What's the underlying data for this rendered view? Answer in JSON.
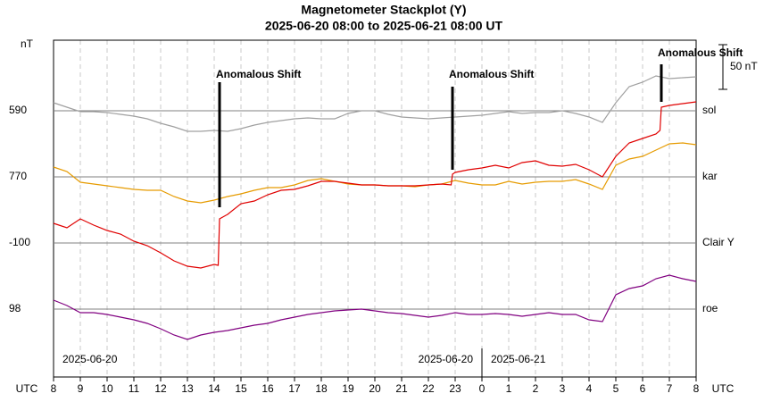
{
  "chart_data": {
    "type": "line",
    "title": "Magnetometer Stackplot (Y)",
    "subtitle": "2025-06-20 08:00 to 2025-06-21 08:00 UT",
    "y_label": "nT",
    "x_label_left": "UTC",
    "x_label_right": "UTC",
    "xlim": [
      0,
      24
    ],
    "xticks": [
      {
        "value": 0,
        "label": "8"
      },
      {
        "value": 1,
        "label": "9"
      },
      {
        "value": 2,
        "label": "10"
      },
      {
        "value": 3,
        "label": "11"
      },
      {
        "value": 4,
        "label": "12"
      },
      {
        "value": 5,
        "label": "13"
      },
      {
        "value": 6,
        "label": "14"
      },
      {
        "value": 7,
        "label": "15"
      },
      {
        "value": 8,
        "label": "16"
      },
      {
        "value": 9,
        "label": "17"
      },
      {
        "value": 10,
        "label": "18"
      },
      {
        "value": 11,
        "label": "19"
      },
      {
        "value": 12,
        "label": "20"
      },
      {
        "value": 13,
        "label": "21"
      },
      {
        "value": 14,
        "label": "22"
      },
      {
        "value": 15,
        "label": "23"
      },
      {
        "value": 16,
        "label": "0"
      },
      {
        "value": 17,
        "label": "1"
      },
      {
        "value": 18,
        "label": "2"
      },
      {
        "value": 19,
        "label": "3"
      },
      {
        "value": 20,
        "label": "4"
      },
      {
        "value": 21,
        "label": "5"
      },
      {
        "value": 22,
        "label": "6"
      },
      {
        "value": 23,
        "label": "7"
      },
      {
        "value": 24,
        "label": "8"
      }
    ],
    "grid": true,
    "date_labels": [
      {
        "x": 0,
        "text": "2025-06-20",
        "align": "start"
      },
      {
        "x": 16,
        "text": "2025-06-20",
        "align": "end"
      },
      {
        "x": 16,
        "text": "2025-06-21",
        "align": "start"
      }
    ],
    "day_divider": 16,
    "scale_bar": {
      "value": 50,
      "label": "50 nT"
    },
    "x": [
      0,
      0.5,
      1,
      1.5,
      2,
      2.5,
      3,
      3.5,
      4,
      4.5,
      5,
      5.5,
      6,
      6.5,
      7,
      7.5,
      8,
      8.5,
      9,
      9.5,
      10,
      10.5,
      11,
      11.5,
      12,
      12.5,
      13,
      13.5,
      14,
      14.5,
      15,
      15.5,
      16,
      16.5,
      17,
      17.5,
      18,
      18.5,
      19,
      19.5,
      20,
      20.5,
      21,
      21.5,
      22,
      22.5,
      23,
      23.5,
      24
    ],
    "series": [
      {
        "name": "sol",
        "baseline": 590,
        "color": "#a0a0a0",
        "values": [
          599,
          594,
          589,
          589,
          588,
          586,
          584,
          581,
          576,
          572,
          567,
          567,
          568,
          567,
          570,
          574,
          577,
          579,
          581,
          582,
          581,
          581,
          587,
          590,
          590,
          586,
          583,
          582,
          581,
          582,
          583,
          584,
          585,
          587,
          589,
          587,
          588,
          588,
          590,
          587,
          583,
          577,
          599,
          617,
          622,
          629,
          626,
          627,
          628
        ]
      },
      {
        "name": "kar",
        "baseline": 770,
        "color": "#e69b00",
        "values": [
          781,
          776,
          764,
          762,
          760,
          758,
          756,
          755,
          755,
          748,
          743,
          741,
          744,
          748,
          751,
          755,
          758,
          758,
          761,
          766,
          768,
          765,
          762,
          761,
          761,
          760,
          760,
          759,
          761,
          762,
          766,
          763,
          761,
          761,
          765,
          762,
          764,
          765,
          765,
          767,
          762,
          756,
          783,
          790,
          793,
          800,
          807,
          808,
          806
        ]
      },
      {
        "name": "Clair Y",
        "baseline": -100,
        "color": "#e00000",
        "x": [
          0,
          0.5,
          1,
          1.5,
          2,
          2.5,
          3,
          3.5,
          4,
          4.5,
          5,
          5.5,
          6,
          6.15,
          6.2,
          6.5,
          7,
          7.5,
          8,
          8.5,
          9,
          9.5,
          10,
          10.5,
          11,
          11.5,
          12,
          12.5,
          13,
          13.5,
          14,
          14.5,
          14.85,
          14.9,
          15,
          15.5,
          16,
          16.5,
          17,
          17.5,
          18,
          18.5,
          19,
          19.5,
          20,
          20.5,
          21,
          21.5,
          22,
          22.5,
          22.65,
          22.7,
          23,
          23.5,
          24
        ],
        "values": [
          -78,
          -83,
          -73,
          -80,
          -86,
          -90,
          -98,
          -103,
          -111,
          -120,
          -126,
          -128,
          -124,
          -125,
          -73,
          -68,
          -56,
          -53,
          -46,
          -41,
          -40,
          -36,
          -31,
          -31,
          -33,
          -35,
          -35,
          -36,
          -36,
          -36,
          -35,
          -34,
          -35,
          -23,
          -21,
          -18,
          -16,
          -13,
          -16,
          -10,
          -8,
          -13,
          -14,
          -12,
          -18,
          -26,
          -3,
          12,
          17,
          22,
          26,
          52,
          54,
          56,
          58
        ]
      },
      {
        "name": "roe",
        "baseline": 98,
        "color": "#800080",
        "values": [
          108,
          102,
          94,
          94,
          92,
          89,
          86,
          82,
          76,
          69,
          64,
          69,
          72,
          74,
          77,
          80,
          82,
          86,
          89,
          92,
          94,
          96,
          97,
          98,
          96,
          94,
          93,
          91,
          89,
          91,
          94,
          92,
          92,
          93,
          92,
          90,
          92,
          94,
          92,
          92,
          86,
          84,
          114,
          121,
          124,
          132,
          136,
          132,
          129
        ]
      }
    ],
    "annotations": [
      {
        "text": "Anomalous Shift",
        "x": 6.2
      },
      {
        "text": "Anomalous Shift",
        "x": 14.9
      },
      {
        "text": "Anomalous Shift",
        "x": 22.7
      }
    ]
  }
}
